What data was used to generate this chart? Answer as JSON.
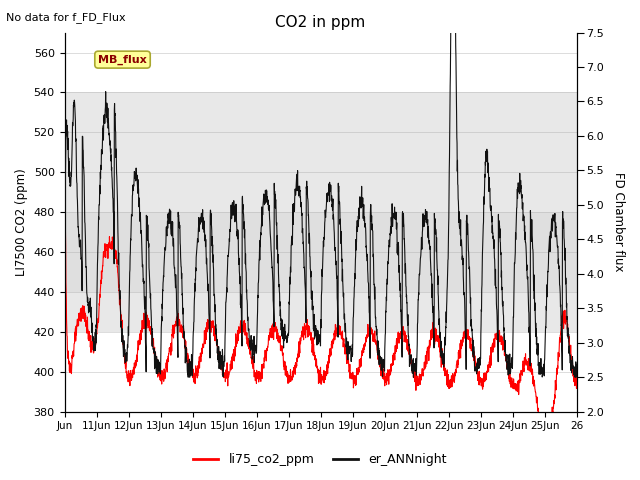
{
  "title": "CO2 in ppm",
  "ylabel_left": "LI7500 CO2 (ppm)",
  "ylabel_right": "FD Chamber flux",
  "top_left_text": "No data for f_FD_Flux",
  "ylim_left": [
    380,
    570
  ],
  "ylim_right": [
    2.0,
    7.5
  ],
  "yticks_left": [
    380,
    400,
    420,
    440,
    460,
    480,
    500,
    520,
    540,
    560
  ],
  "yticks_right": [
    2.0,
    2.5,
    3.0,
    3.5,
    4.0,
    4.5,
    5.0,
    5.5,
    6.0,
    6.5,
    7.0,
    7.5
  ],
  "xtick_labels": [
    "Jun",
    "11Jun",
    "12Jun",
    "13Jun",
    "14Jun",
    "15Jun",
    "16Jun",
    "17Jun",
    "18Jun",
    "19Jun",
    "20Jun",
    "21Jun",
    "22Jun",
    "23Jun",
    "24Jun",
    "25Jun",
    "26"
  ],
  "color_red": "#ff0000",
  "color_black": "#111111",
  "legend_labels": [
    "li75_co2_ppm",
    "er_ANNnight"
  ],
  "annotation_box_text": "MB_flux",
  "annotation_box_color": "#ffff99",
  "annotation_box_edge": "#aaa830",
  "bg_band_light": "#e8e8e8",
  "bg_band_mid": "#d8d8d8",
  "bg_white": "#ffffff"
}
